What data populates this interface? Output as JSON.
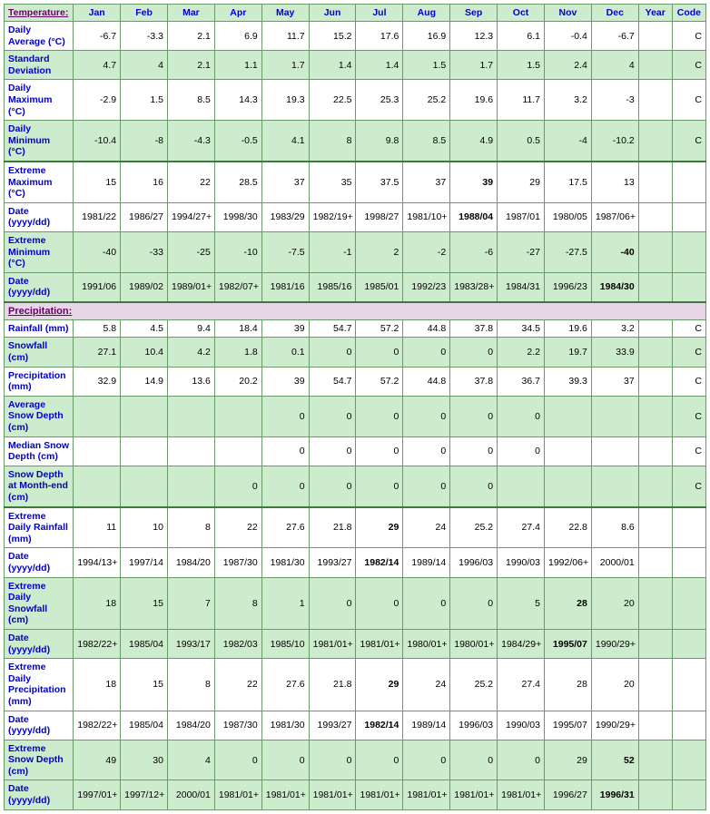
{
  "colors": {
    "green_bg": "#cdeccd",
    "white_bg": "#ffffff",
    "section_bg": "#e6d6e6",
    "border": "#6a9a6a",
    "border_thick": "#3a7a3a",
    "link_blue": "#0000cc",
    "section_text": "#660066"
  },
  "header": {
    "corner": "Temperature:",
    "months": [
      "Jan",
      "Feb",
      "Mar",
      "Apr",
      "May",
      "Jun",
      "Jul",
      "Aug",
      "Sep",
      "Oct",
      "Nov",
      "Dec"
    ],
    "year": "Year",
    "code": "Code"
  },
  "sections": {
    "precipitation": "Precipitation:"
  },
  "rows": [
    {
      "id": "daily-average",
      "label": "Daily Average (°C)",
      "shade": "white",
      "thick": false,
      "code": "C",
      "v": [
        "-6.7",
        "-3.3",
        "2.1",
        "6.9",
        "11.7",
        "15.2",
        "17.6",
        "16.9",
        "12.3",
        "6.1",
        "-0.4",
        "-6.7"
      ],
      "year": ""
    },
    {
      "id": "standard-deviation",
      "label": "Standard Deviation",
      "shade": "green",
      "thick": false,
      "code": "C",
      "v": [
        "4.7",
        "4",
        "2.1",
        "1.1",
        "1.7",
        "1.4",
        "1.4",
        "1.5",
        "1.7",
        "1.5",
        "2.4",
        "4"
      ],
      "year": ""
    },
    {
      "id": "daily-maximum",
      "label": "Daily Maximum (°C)",
      "shade": "white",
      "thick": false,
      "code": "C",
      "v": [
        "-2.9",
        "1.5",
        "8.5",
        "14.3",
        "19.3",
        "22.5",
        "25.3",
        "25.2",
        "19.6",
        "11.7",
        "3.2",
        "-3"
      ],
      "year": ""
    },
    {
      "id": "daily-minimum",
      "label": "Daily Minimum (°C)",
      "shade": "green",
      "thick": false,
      "code": "C",
      "v": [
        "-10.4",
        "-8",
        "-4.3",
        "-0.5",
        "4.1",
        "8",
        "9.8",
        "8.5",
        "4.9",
        "0.5",
        "-4",
        "-10.2"
      ],
      "year": ""
    },
    {
      "id": "extreme-maximum",
      "label": "Extreme Maximum (°C)",
      "shade": "white",
      "thick": true,
      "code": "",
      "v": [
        "15",
        "16",
        "22",
        "28.5",
        "37",
        "35",
        "37.5",
        "37",
        "39",
        "29",
        "17.5",
        "13"
      ],
      "year": "",
      "bold": [
        8
      ]
    },
    {
      "id": "ext-max-date",
      "label": "Date (yyyy/dd)",
      "shade": "white",
      "thick": false,
      "code": "",
      "v": [
        "1981/22",
        "1986/27",
        "1994/27+",
        "1998/30",
        "1983/29",
        "1982/19+",
        "1998/27",
        "1981/10+",
        "1988/04",
        "1987/01",
        "1980/05",
        "1987/06+"
      ],
      "year": "",
      "bold": [
        8
      ]
    },
    {
      "id": "extreme-minimum",
      "label": "Extreme Minimum (°C)",
      "shade": "green",
      "thick": false,
      "code": "",
      "v": [
        "-40",
        "-33",
        "-25",
        "-10",
        "-7.5",
        "-1",
        "2",
        "-2",
        "-6",
        "-27",
        "-27.5",
        "-40"
      ],
      "year": "",
      "bold": [
        11
      ]
    },
    {
      "id": "ext-min-date",
      "label": "Date (yyyy/dd)",
      "shade": "green",
      "thick": false,
      "code": "",
      "v": [
        "1991/06",
        "1989/02",
        "1989/01+",
        "1982/07+",
        "1981/16",
        "1985/16",
        "1985/01",
        "1992/23",
        "1983/28+",
        "1984/31",
        "1996/23",
        "1984/30"
      ],
      "year": "",
      "bold": [
        11
      ]
    },
    {
      "id": "rainfall",
      "label": "Rainfall (mm)",
      "shade": "white",
      "thick": false,
      "code": "C",
      "v": [
        "5.8",
        "4.5",
        "9.4",
        "18.4",
        "39",
        "54.7",
        "57.2",
        "44.8",
        "37.8",
        "34.5",
        "19.6",
        "3.2"
      ],
      "year": ""
    },
    {
      "id": "snowfall",
      "label": "Snowfall (cm)",
      "shade": "green",
      "thick": false,
      "code": "C",
      "v": [
        "27.1",
        "10.4",
        "4.2",
        "1.8",
        "0.1",
        "0",
        "0",
        "0",
        "0",
        "2.2",
        "19.7",
        "33.9"
      ],
      "year": ""
    },
    {
      "id": "precipitation",
      "label": "Precipitation (mm)",
      "shade": "white",
      "thick": false,
      "code": "C",
      "v": [
        "32.9",
        "14.9",
        "13.6",
        "20.2",
        "39",
        "54.7",
        "57.2",
        "44.8",
        "37.8",
        "36.7",
        "39.3",
        "37"
      ],
      "year": ""
    },
    {
      "id": "avg-snow-depth",
      "label": "Average Snow Depth (cm)",
      "shade": "green",
      "thick": false,
      "code": "C",
      "v": [
        "",
        "",
        "",
        "",
        "0",
        "0",
        "0",
        "0",
        "0",
        "0",
        "",
        ""
      ],
      "year": ""
    },
    {
      "id": "median-snow-depth",
      "label": "Median Snow Depth (cm)",
      "shade": "white",
      "thick": false,
      "code": "C",
      "v": [
        "",
        "",
        "",
        "",
        "0",
        "0",
        "0",
        "0",
        "0",
        "0",
        "",
        ""
      ],
      "year": ""
    },
    {
      "id": "snow-depth-monthend",
      "label": "Snow Depth at Month-end (cm)",
      "shade": "green",
      "thick": false,
      "code": "C",
      "v": [
        "",
        "",
        "",
        "0",
        "0",
        "0",
        "0",
        "0",
        "0",
        "",
        "",
        ""
      ],
      "year": ""
    },
    {
      "id": "ext-daily-rainfall",
      "label": "Extreme Daily Rainfall (mm)",
      "shade": "white",
      "thick": true,
      "code": "",
      "v": [
        "11",
        "10",
        "8",
        "22",
        "27.6",
        "21.8",
        "29",
        "24",
        "25.2",
        "27.4",
        "22.8",
        "8.6"
      ],
      "year": "",
      "bold": [
        6
      ]
    },
    {
      "id": "edr-date",
      "label": "Date (yyyy/dd)",
      "shade": "white",
      "thick": false,
      "code": "",
      "v": [
        "1994/13+",
        "1997/14",
        "1984/20",
        "1987/30",
        "1981/30",
        "1993/27",
        "1982/14",
        "1989/14",
        "1996/03",
        "1990/03",
        "1992/06+",
        "2000/01"
      ],
      "year": "",
      "bold": [
        6
      ]
    },
    {
      "id": "ext-daily-snowfall",
      "label": "Extreme Daily Snowfall (cm)",
      "shade": "green",
      "thick": false,
      "code": "",
      "v": [
        "18",
        "15",
        "7",
        "8",
        "1",
        "0",
        "0",
        "0",
        "0",
        "5",
        "28",
        "20"
      ],
      "year": "",
      "bold": [
        10
      ]
    },
    {
      "id": "eds-date",
      "label": "Date (yyyy/dd)",
      "shade": "green",
      "thick": false,
      "code": "",
      "v": [
        "1982/22+",
        "1985/04",
        "1993/17",
        "1982/03",
        "1985/10",
        "1981/01+",
        "1981/01+",
        "1980/01+",
        "1980/01+",
        "1984/29+",
        "1995/07",
        "1990/29+"
      ],
      "year": "",
      "bold": [
        10
      ]
    },
    {
      "id": "ext-daily-precip",
      "label": "Extreme Daily Precipitation (mm)",
      "shade": "white",
      "thick": false,
      "code": "",
      "v": [
        "18",
        "15",
        "8",
        "22",
        "27.6",
        "21.8",
        "29",
        "24",
        "25.2",
        "27.4",
        "28",
        "20"
      ],
      "year": "",
      "bold": [
        6
      ]
    },
    {
      "id": "edp-date",
      "label": "Date (yyyy/dd)",
      "shade": "white",
      "thick": false,
      "code": "",
      "v": [
        "1982/22+",
        "1985/04",
        "1984/20",
        "1987/30",
        "1981/30",
        "1993/27",
        "1982/14",
        "1989/14",
        "1996/03",
        "1990/03",
        "1995/07",
        "1990/29+"
      ],
      "year": "",
      "bold": [
        6
      ]
    },
    {
      "id": "ext-snow-depth",
      "label": "Extreme Snow Depth (cm)",
      "shade": "green",
      "thick": false,
      "code": "",
      "v": [
        "49",
        "30",
        "4",
        "0",
        "0",
        "0",
        "0",
        "0",
        "0",
        "0",
        "29",
        "52"
      ],
      "year": "",
      "bold": [
        11
      ]
    },
    {
      "id": "esd-date",
      "label": "Date (yyyy/dd)",
      "shade": "green",
      "thick": false,
      "code": "",
      "v": [
        "1997/01+",
        "1997/12+",
        "2000/01",
        "1981/01+",
        "1981/01+",
        "1981/01+",
        "1981/01+",
        "1981/01+",
        "1981/01+",
        "1981/01+",
        "1996/27",
        "1996/31"
      ],
      "year": "",
      "bold": [
        11
      ]
    }
  ]
}
